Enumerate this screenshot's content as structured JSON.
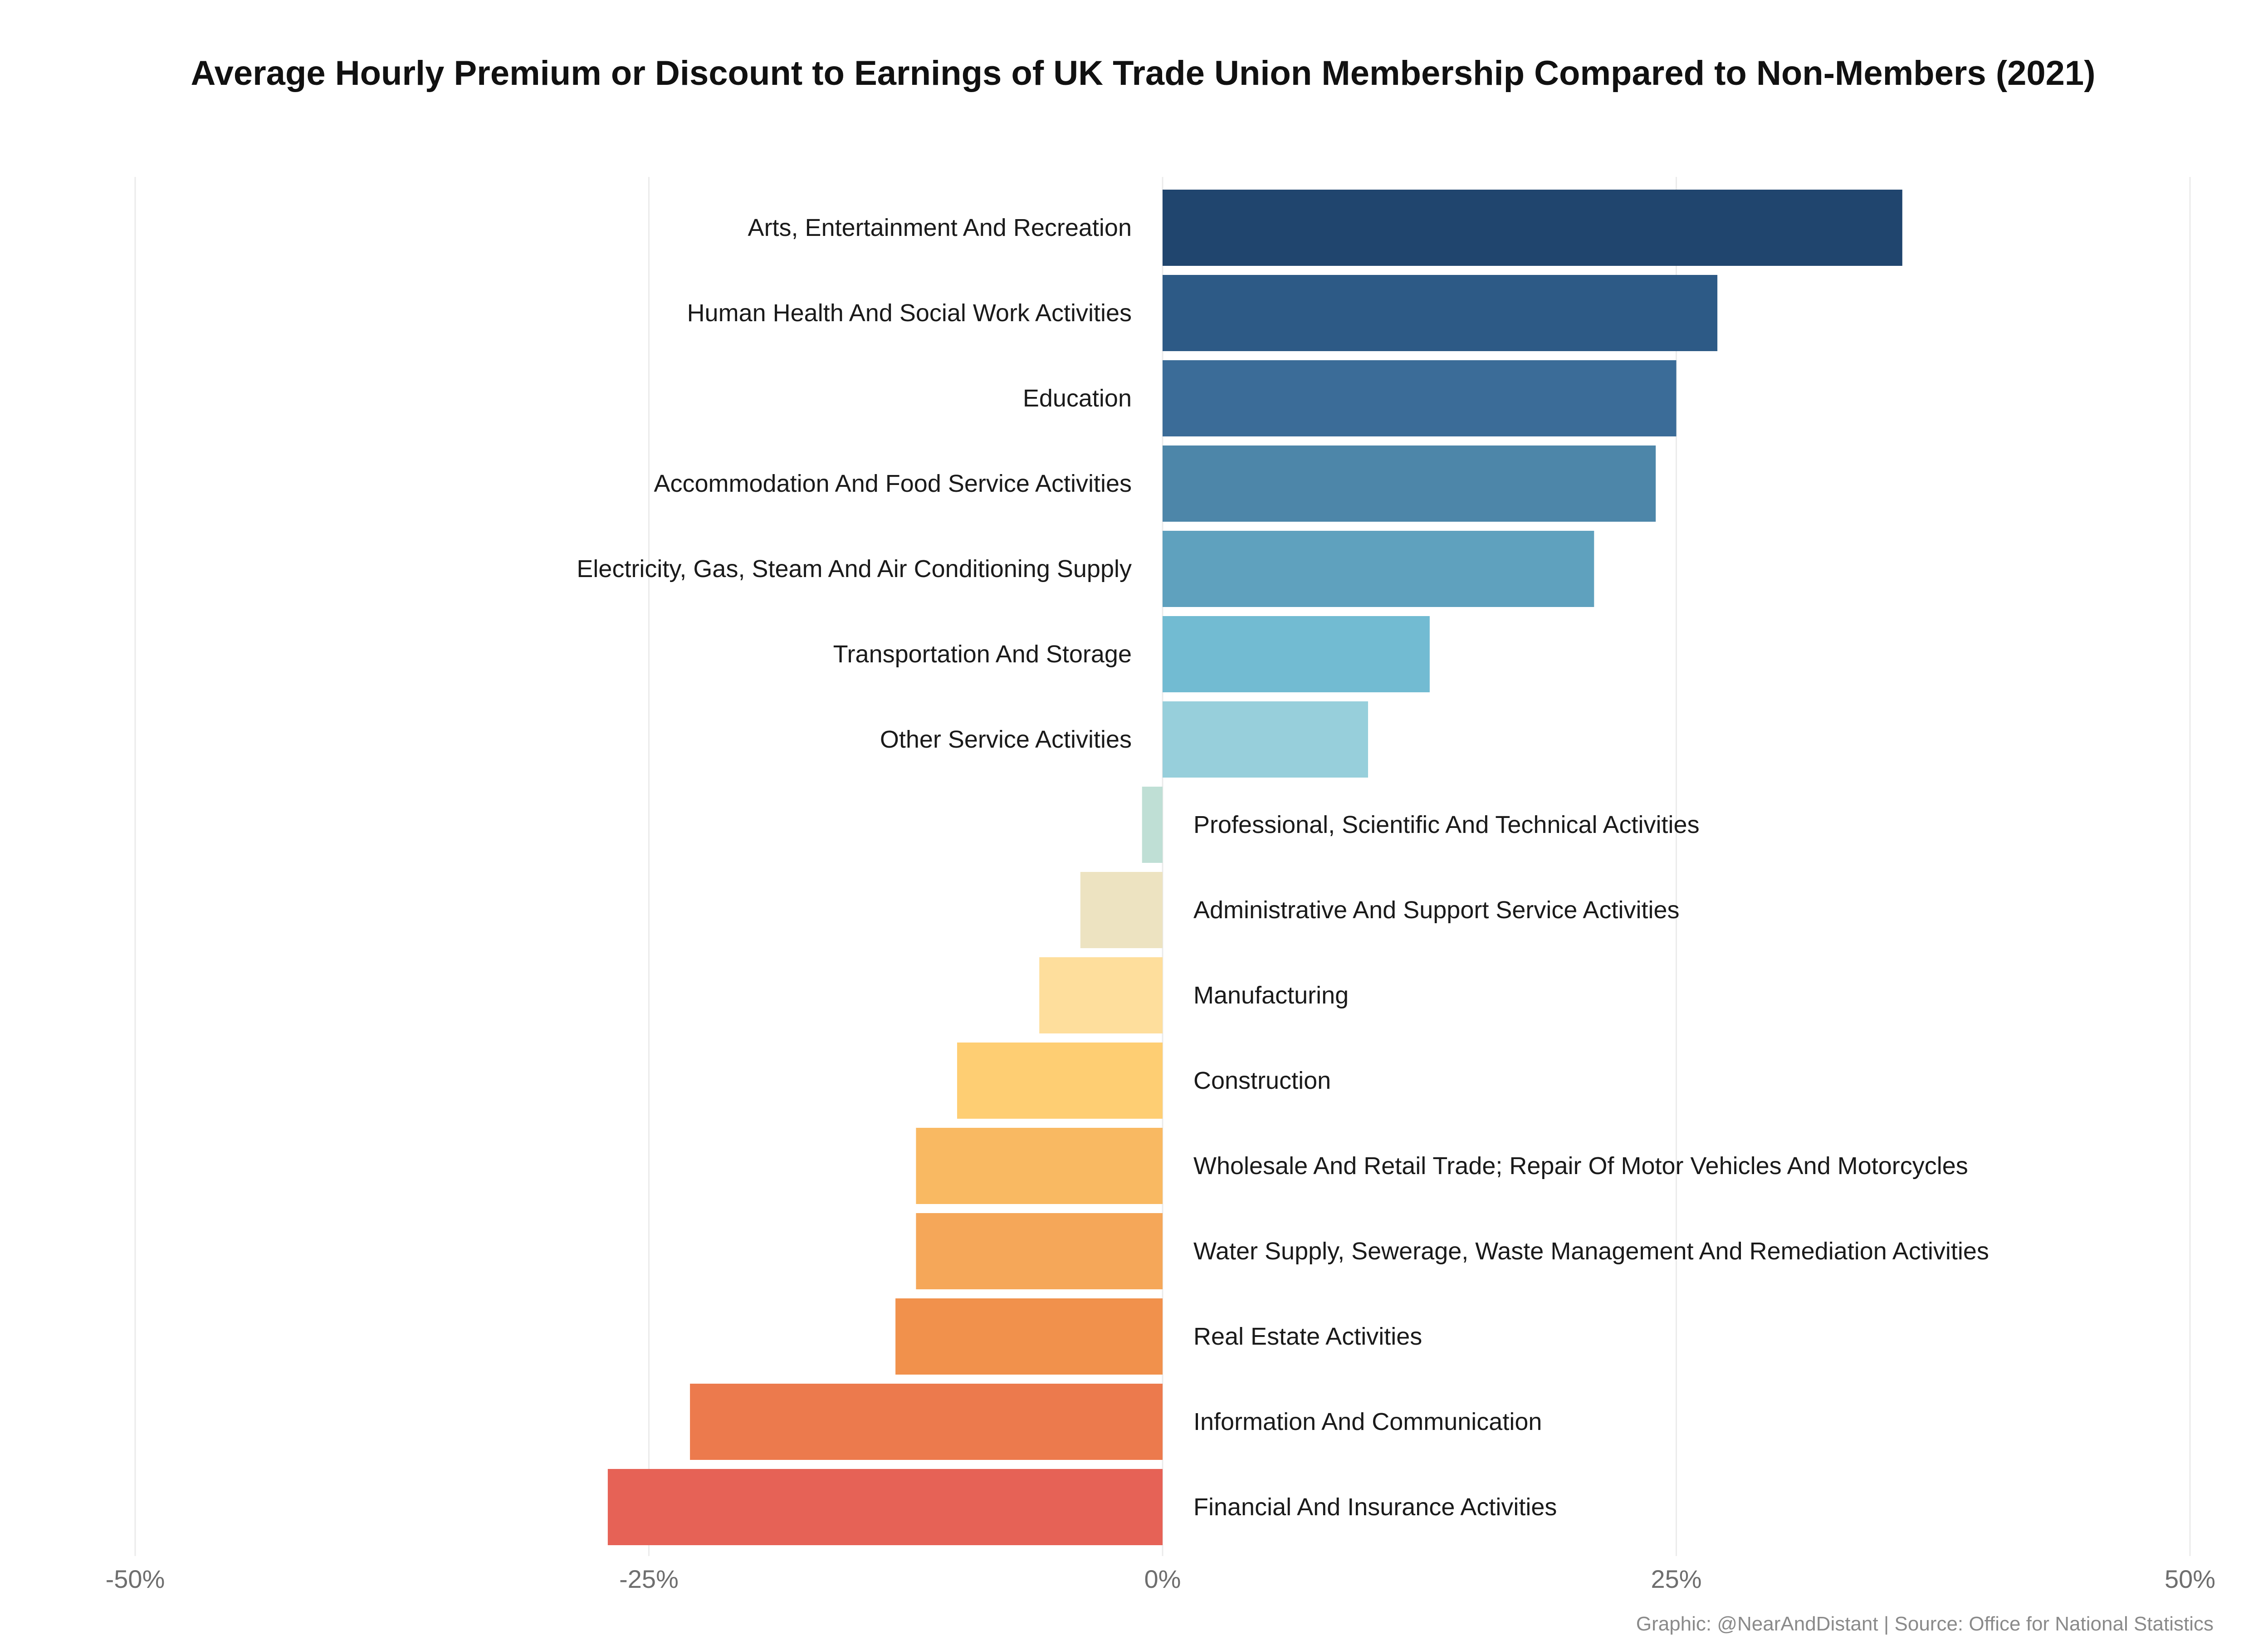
{
  "chart_data": {
    "type": "bar",
    "orientation": "horizontal",
    "title": "Average Hourly Premium or Discount to Earnings of UK Trade Union Membership Compared to Non-Members (2021)",
    "xlabel": "",
    "ylabel": "",
    "xlim": [
      -50,
      50
    ],
    "x_ticks": [
      -50,
      -25,
      0,
      25,
      50
    ],
    "x_tick_labels": [
      "-50%",
      "-25%",
      "0%",
      "25%",
      "50%"
    ],
    "grid": "vertical gridlines on",
    "legend": "none",
    "categories": [
      "Arts, Entertainment And Recreation",
      "Human Health And Social Work Activities",
      "Education",
      "Accommodation And Food Service Activities",
      "Electricity, Gas, Steam And Air Conditioning Supply",
      "Transportation And Storage",
      "Other Service Activities",
      "Professional, Scientific And Technical Activities",
      "Administrative And Support Service Activities",
      "Manufacturing",
      "Construction",
      "Wholesale And Retail Trade; Repair Of Motor Vehicles And Motorcycles",
      "Water Supply, Sewerage, Waste Management And Remediation Activities",
      "Real Estate Activities",
      "Information And Communication",
      "Financial And Insurance Activities"
    ],
    "values": [
      36,
      27,
      25,
      24,
      21,
      13,
      10,
      -1,
      -4,
      -6,
      -10,
      -12,
      -12,
      -13,
      -23,
      -27
    ],
    "colors": [
      "#20456e",
      "#2d5a86",
      "#3b6c98",
      "#4d86a9",
      "#5fa1be",
      "#72bbd2",
      "#97cfdb",
      "#bfdfd5",
      "#ede3c1",
      "#fede9c",
      "#fece73",
      "#f9b962",
      "#f5a759",
      "#f1914c",
      "#ec7a4d",
      "#e66256"
    ]
  },
  "source": "Graphic: @NearAndDistant | Source: Office for National Statistics"
}
